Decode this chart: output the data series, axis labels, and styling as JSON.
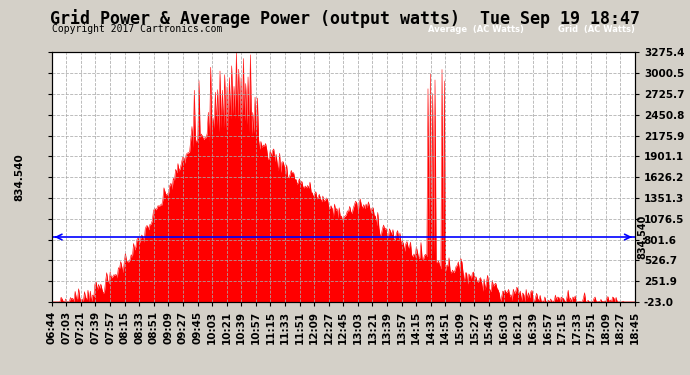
{
  "title": "Grid Power & Average Power (output watts)  Tue Sep 19 18:47",
  "copyright": "Copyright 2017 Cartronics.com",
  "yticks_right": [
    3275.4,
    3000.5,
    2725.7,
    2450.8,
    2175.9,
    1901.1,
    1626.2,
    1351.3,
    1076.5,
    801.6,
    526.7,
    251.9,
    -23.0
  ],
  "ymin": -23.0,
  "ymax": 3275.4,
  "average_value": 834.54,
  "average_label": "834.540",
  "bg_color": "#d4d0c8",
  "plot_bg_color": "#ffffff",
  "grid_color": "#aaaaaa",
  "fill_color": "#ff0000",
  "line_color": "#ff0000",
  "avg_line_color": "#0000ff",
  "legend_avg_bg": "#0000ff",
  "legend_grid_bg": "#ff0000",
  "title_fontsize": 12,
  "tick_fontsize": 7.5,
  "copyright_fontsize": 7
}
